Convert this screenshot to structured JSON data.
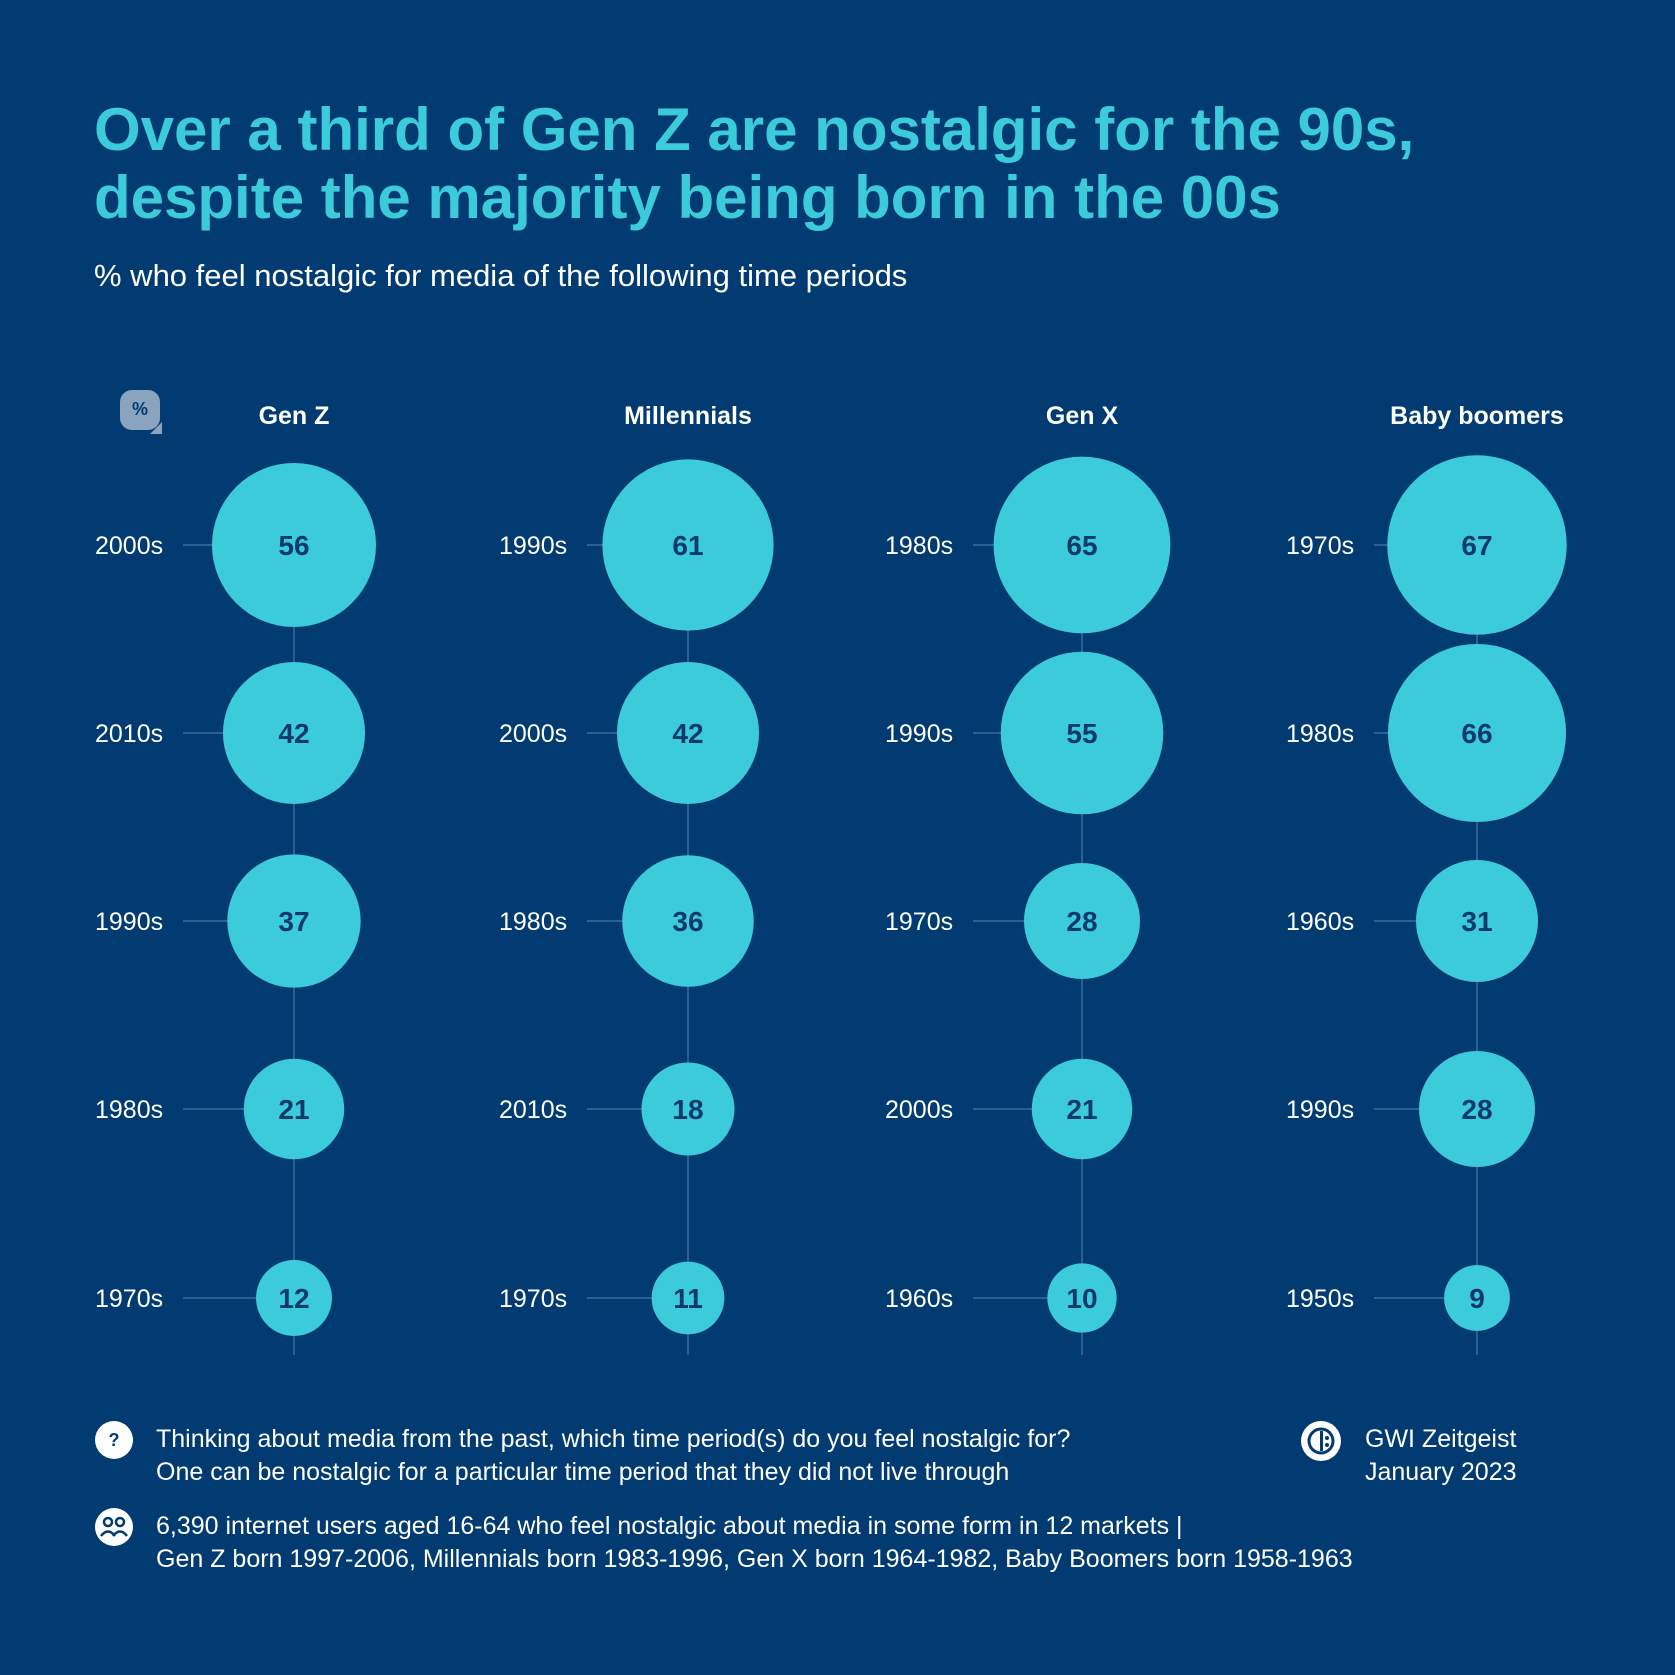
{
  "title": "Over a third of Gen Z are nostalgic for the 90s, despite the majority being born in the 00s",
  "subtitle": "% who feel nostalgic for media of the following time periods",
  "unit_icon": "%",
  "colors": {
    "background": "#013b71",
    "bubble": "#3ccbdb",
    "value_text": "#0d3a6b",
    "title": "#3ccbdb",
    "line": "#2c5f93"
  },
  "chart_data": {
    "type": "scatter",
    "encoding": "bubble size proportional to value",
    "groups": [
      {
        "name": "Gen Z",
        "categories": [
          "2000s",
          "2010s",
          "1990s",
          "1980s",
          "1970s"
        ],
        "values": [
          56,
          42,
          37,
          21,
          12
        ]
      },
      {
        "name": "Millennials",
        "categories": [
          "1990s",
          "2000s",
          "1980s",
          "2010s",
          "1970s"
        ],
        "values": [
          61,
          42,
          36,
          18,
          11
        ]
      },
      {
        "name": "Gen X",
        "categories": [
          "1980s",
          "1990s",
          "1970s",
          "2000s",
          "1960s"
        ],
        "values": [
          65,
          55,
          28,
          21,
          10
        ]
      },
      {
        "name": "Baby boomers",
        "categories": [
          "1970s",
          "1980s",
          "1960s",
          "1990s",
          "1950s"
        ],
        "values": [
          67,
          66,
          31,
          28,
          9
        ]
      }
    ]
  },
  "footer": {
    "question_icon": "question-icon",
    "question_line1": "Thinking about media from the past, which time period(s) do you feel nostalgic for?",
    "question_line2": "One can be nostalgic for a particular time period that they did not live through",
    "source_icon": "gwi-logo-icon",
    "source_line1": "GWI Zeitgeist",
    "source_line2": "January 2023",
    "sample_icon": "users-icon",
    "sample_line1": "6,390 internet users aged 16-64 who feel nostalgic about media in some form in 12 markets |",
    "sample_line2": "Gen Z born 1997-2006, Millennials born 1983-1996, Gen X born 1964-1982, Baby Boomers born 1958-1963"
  }
}
